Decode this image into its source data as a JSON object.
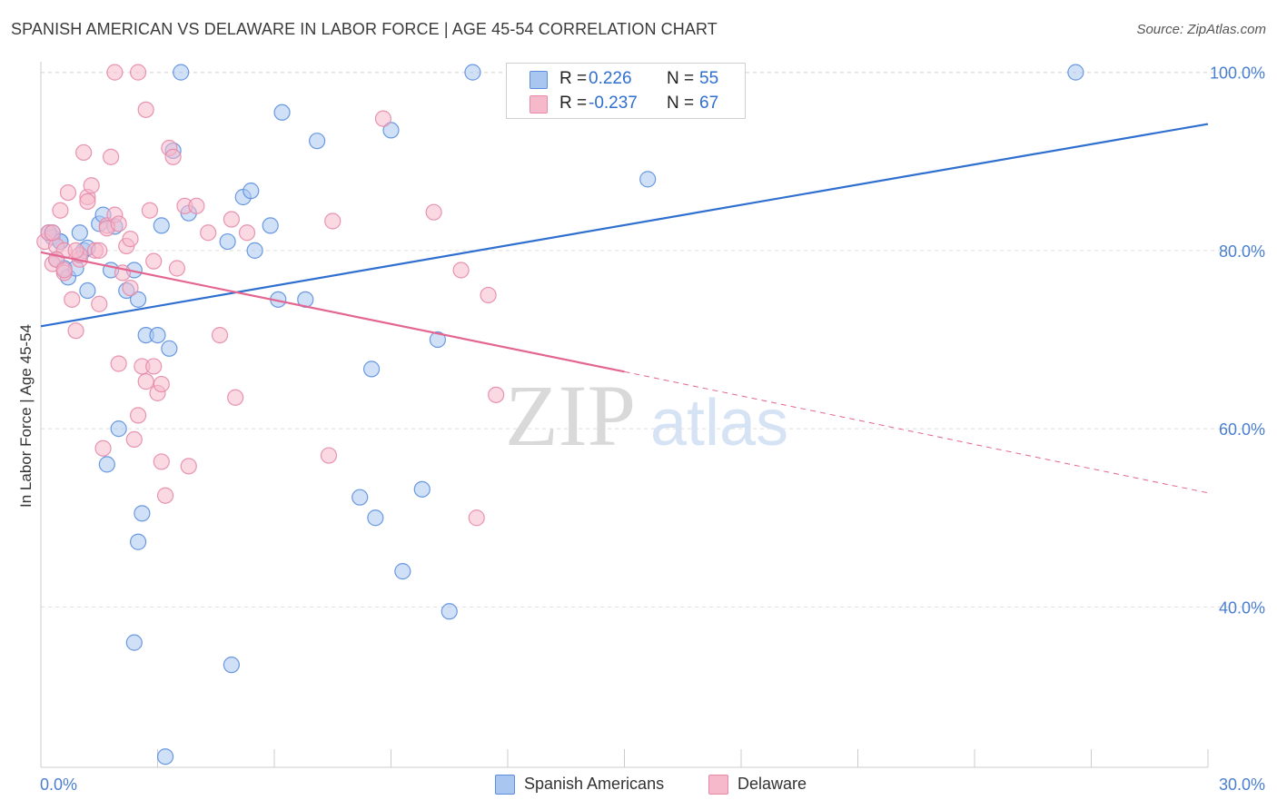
{
  "chart_data": {
    "type": "scatter",
    "title": "SPANISH AMERICAN VS DELAWARE IN LABOR FORCE | AGE 45-54 CORRELATION CHART",
    "source": "Source: ZipAtlas.com",
    "ylabel": "In Labor Force | Age 45-54",
    "xlabel": "",
    "x_tick_labels": [
      "0.0%",
      "30.0%"
    ],
    "y_tick_labels": [
      "100.0%",
      "80.0%",
      "60.0%",
      "40.0%"
    ],
    "y_tick_values": [
      100,
      80,
      60,
      40
    ],
    "xlim": [
      0,
      30
    ],
    "ylim": [
      22,
      102
    ],
    "grid": true,
    "watermark": {
      "zip": "ZIP",
      "atlas": "atlas"
    },
    "colors": {
      "blue_fill": "#a9c6f0",
      "blue_stroke": "#5b8fde",
      "blue_line": "#2f6fd0",
      "pink_fill": "#f6b9cc",
      "pink_stroke": "#e68aa8",
      "pink_line": "#e4658f",
      "tick_text": "#4a7fd0",
      "grid": "#dddddd"
    },
    "legend": {
      "rows": [
        {
          "r_label": "R =",
          "r_value": "0.226",
          "n_label": "N =",
          "n_value": "55"
        },
        {
          "r_label": "R =",
          "r_value": "-0.237",
          "n_label": "N =",
          "n_value": "67"
        }
      ]
    },
    "series": [
      {
        "name": "Spanish Americans",
        "trend": {
          "x0": 0,
          "y0": 71.5,
          "x1": 30,
          "y1": 94.2
        },
        "points": [
          [
            0.2,
            82.0
          ],
          [
            0.3,
            81.5
          ],
          [
            0.4,
            79.0
          ],
          [
            0.5,
            81.0
          ],
          [
            0.6,
            78.0
          ],
          [
            0.7,
            77.0
          ],
          [
            0.9,
            78.0
          ],
          [
            1.0,
            82.0
          ],
          [
            1.1,
            80.0
          ],
          [
            1.2,
            80.3
          ],
          [
            1.2,
            75.5
          ],
          [
            1.5,
            83.0
          ],
          [
            1.6,
            84.0
          ],
          [
            1.8,
            77.8
          ],
          [
            1.9,
            82.7
          ],
          [
            2.2,
            75.5
          ],
          [
            2.4,
            77.8
          ],
          [
            2.5,
            74.5
          ],
          [
            2.0,
            60.0
          ],
          [
            1.7,
            56.0
          ],
          [
            2.7,
            70.5
          ],
          [
            3.0,
            70.5
          ],
          [
            3.3,
            69.0
          ],
          [
            2.6,
            50.5
          ],
          [
            2.5,
            47.3
          ],
          [
            2.4,
            36.0
          ],
          [
            3.1,
            82.8
          ],
          [
            3.4,
            91.2
          ],
          [
            3.8,
            84.2
          ],
          [
            4.8,
            81.0
          ],
          [
            5.2,
            86.0
          ],
          [
            5.4,
            86.7
          ],
          [
            5.5,
            80.0
          ],
          [
            5.9,
            82.8
          ],
          [
            6.1,
            74.5
          ],
          [
            6.2,
            95.5
          ],
          [
            6.8,
            74.5
          ],
          [
            7.1,
            92.3
          ],
          [
            8.5,
            66.7
          ],
          [
            8.2,
            52.3
          ],
          [
            8.6,
            50.0
          ],
          [
            9.0,
            93.5
          ],
          [
            9.3,
            44.0
          ],
          [
            9.8,
            53.2
          ],
          [
            10.2,
            70.0
          ],
          [
            10.5,
            39.5
          ],
          [
            11.1,
            100.0
          ],
          [
            12.5,
            100.0
          ],
          [
            15.6,
            88.0
          ],
          [
            26.6,
            100.0
          ],
          [
            3.6,
            100.0
          ],
          [
            4.9,
            33.5
          ],
          [
            3.2,
            23.2
          ],
          [
            0.3,
            82.0
          ],
          [
            0.5,
            81.0
          ]
        ]
      },
      {
        "name": "Delaware",
        "trend": {
          "x0": 0,
          "y0": 79.8,
          "x1": 15.0,
          "y1": 66.4,
          "dash_x1": 30,
          "dash_y1": 52.8
        },
        "points": [
          [
            0.1,
            81.0
          ],
          [
            0.2,
            82.0
          ],
          [
            0.3,
            78.5
          ],
          [
            0.4,
            80.5
          ],
          [
            0.5,
            84.5
          ],
          [
            0.6,
            77.5
          ],
          [
            0.7,
            86.5
          ],
          [
            0.8,
            74.5
          ],
          [
            0.9,
            71.0
          ],
          [
            1.0,
            79.0
          ],
          [
            1.1,
            91.0
          ],
          [
            1.2,
            86.0
          ],
          [
            1.3,
            87.3
          ],
          [
            1.4,
            80.0
          ],
          [
            1.5,
            74.0
          ],
          [
            1.6,
            57.8
          ],
          [
            1.7,
            82.8
          ],
          [
            1.8,
            90.5
          ],
          [
            1.9,
            84.0
          ],
          [
            2.0,
            67.3
          ],
          [
            2.1,
            77.5
          ],
          [
            2.2,
            80.5
          ],
          [
            2.3,
            81.3
          ],
          [
            2.4,
            58.8
          ],
          [
            2.5,
            61.5
          ],
          [
            2.6,
            67.0
          ],
          [
            2.7,
            65.3
          ],
          [
            2.8,
            84.5
          ],
          [
            2.9,
            78.8
          ],
          [
            3.0,
            64.0
          ],
          [
            3.1,
            56.3
          ],
          [
            3.2,
            52.5
          ],
          [
            3.3,
            91.5
          ],
          [
            3.5,
            78.0
          ],
          [
            3.7,
            85.0
          ],
          [
            3.8,
            55.8
          ],
          [
            4.0,
            85.0
          ],
          [
            4.3,
            82.0
          ],
          [
            4.6,
            70.5
          ],
          [
            4.9,
            83.5
          ],
          [
            5.0,
            63.5
          ],
          [
            5.3,
            82.0
          ],
          [
            7.4,
            57.0
          ],
          [
            7.5,
            83.3
          ],
          [
            8.8,
            94.8
          ],
          [
            10.1,
            84.3
          ],
          [
            10.8,
            77.8
          ],
          [
            11.2,
            50.0
          ],
          [
            11.5,
            75.0
          ],
          [
            11.7,
            63.8
          ],
          [
            1.9,
            100.0
          ],
          [
            2.5,
            100.0
          ],
          [
            2.7,
            95.8
          ],
          [
            3.4,
            90.5
          ],
          [
            0.3,
            82.0
          ],
          [
            0.6,
            80.0
          ],
          [
            1.0,
            79.5
          ],
          [
            1.7,
            82.5
          ],
          [
            2.0,
            83.0
          ],
          [
            2.3,
            75.8
          ],
          [
            0.9,
            80.0
          ],
          [
            1.2,
            85.5
          ],
          [
            2.9,
            67.0
          ],
          [
            3.1,
            65.0
          ],
          [
            0.4,
            79.0
          ],
          [
            0.6,
            77.8
          ],
          [
            1.5,
            80.0
          ]
        ]
      }
    ]
  }
}
